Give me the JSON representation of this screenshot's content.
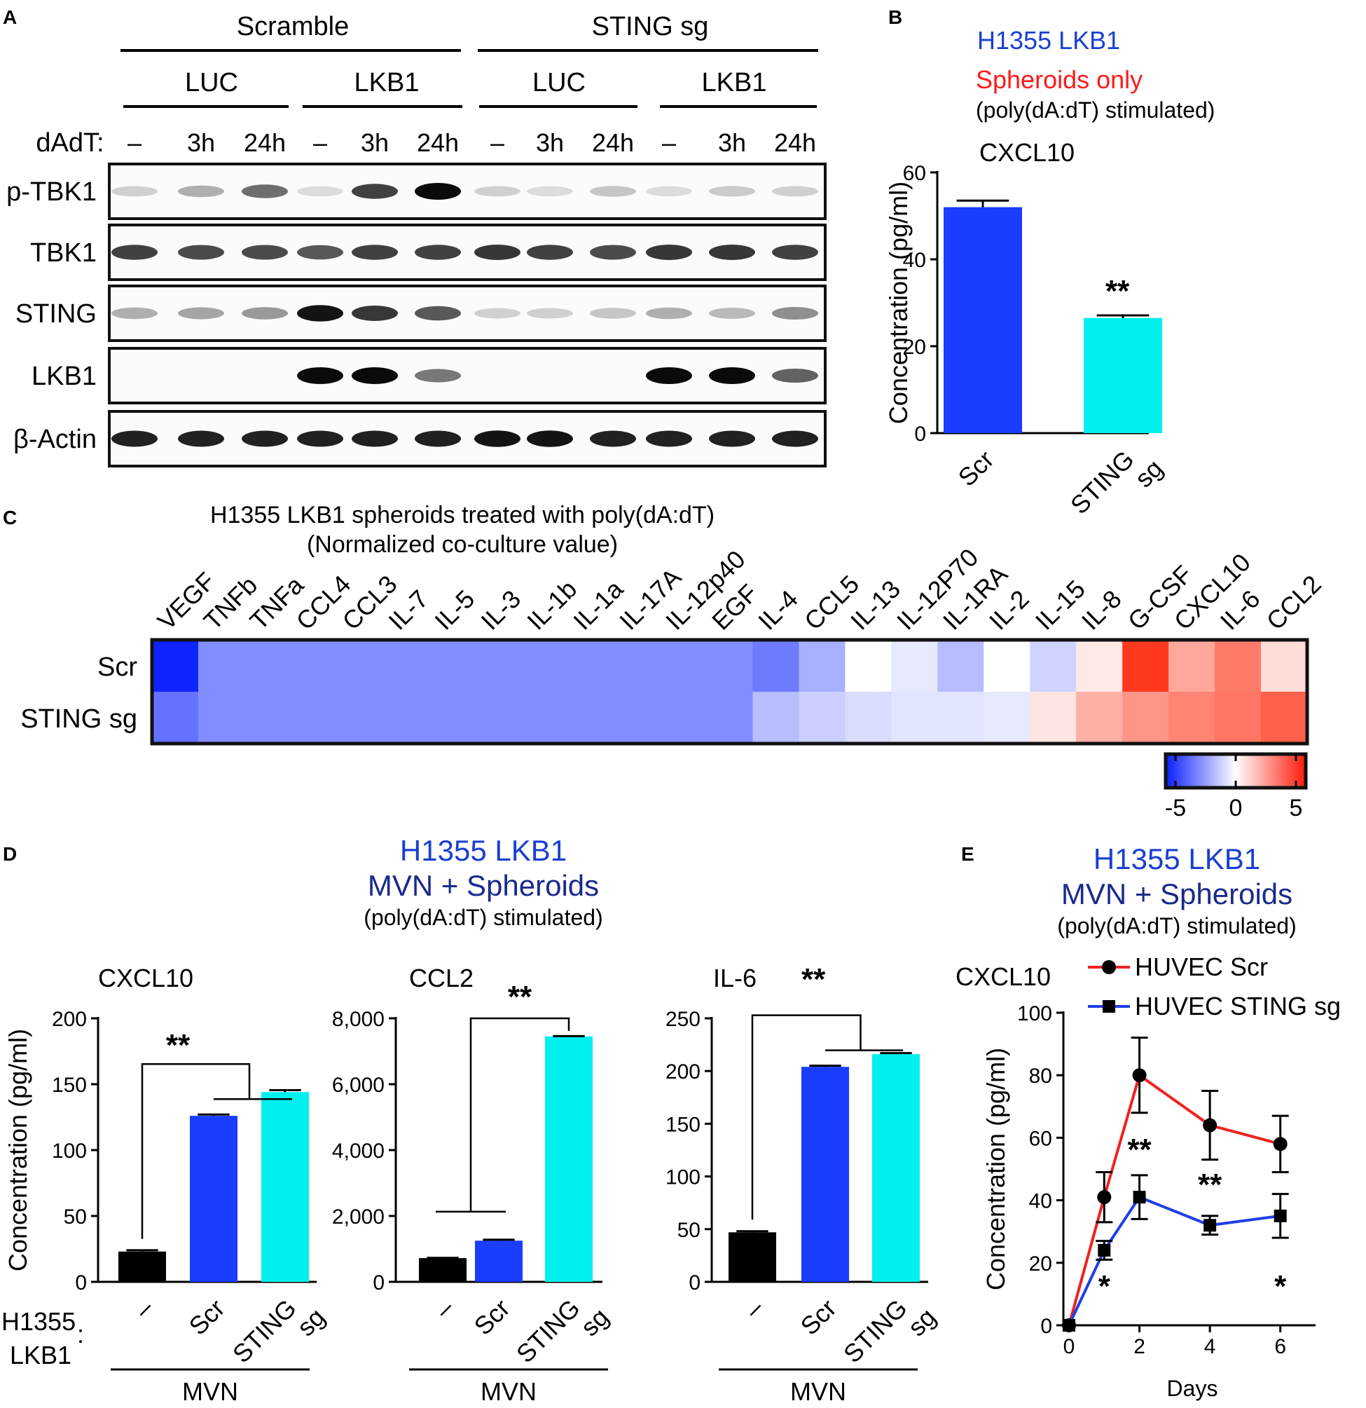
{
  "panel_letters": [
    "A",
    "B",
    "C",
    "D",
    "E"
  ],
  "panel_a": {
    "groups": [
      "Scramble",
      "STING sg"
    ],
    "subgroups": [
      "LUC",
      "LKB1",
      "LUC",
      "LKB1"
    ],
    "time_label": "dAdT:",
    "times": [
      "–",
      "3h",
      "24h",
      "–",
      "3h",
      "24h",
      "–",
      "3h",
      "24h",
      "–",
      "3h",
      "24h"
    ],
    "blot_labels": [
      "p-TBK1",
      "TBK1",
      "STING",
      "LKB1",
      "β-Actin"
    ],
    "band_intensity": {
      "p-TBK1": [
        0.1,
        0.25,
        0.55,
        0.05,
        0.75,
        1.0,
        0.1,
        0.05,
        0.15,
        0.05,
        0.12,
        0.1
      ],
      "TBK1": [
        0.75,
        0.7,
        0.7,
        0.65,
        0.75,
        0.75,
        0.8,
        0.75,
        0.7,
        0.8,
        0.8,
        0.75
      ],
      "STING": [
        0.25,
        0.3,
        0.35,
        0.95,
        0.8,
        0.65,
        0.1,
        0.1,
        0.15,
        0.25,
        0.2,
        0.4
      ],
      "LKB1": [
        0.0,
        0.0,
        0.0,
        1.0,
        1.0,
        0.5,
        0.0,
        0.0,
        0.0,
        1.0,
        1.0,
        0.6
      ],
      "β-Actin": [
        0.9,
        0.9,
        0.9,
        0.9,
        0.9,
        0.9,
        0.95,
        0.95,
        0.9,
        0.9,
        0.9,
        0.9
      ]
    }
  },
  "panel_b": {
    "line1": "H1355 LKB1",
    "line2": "Spheroids only",
    "line3": "(poly(dA:dT) stimulated)",
    "colors": {
      "line1": "#1a3fd1",
      "line2": "#ff1a1a"
    }
  },
  "panel_c": {
    "title1": "H1355 LKB1 spheroids treated with poly(dA:dT)",
    "title2": "(Normalized co-culture value)",
    "columns": [
      "VEGF",
      "TNFb",
      "TNFa",
      "CCL4",
      "CCL3",
      "IL-7",
      "IL-5",
      "IL-3",
      "IL-1b",
      "IL-1a",
      "IL-17A",
      "IL-12p40",
      "EGF",
      "IL-4",
      "CCL5",
      "IL-13",
      "IL-12P70",
      "IL-1RA",
      "IL-2",
      "IL-15",
      "IL-8",
      "G-CSF",
      "CXCL10",
      "IL-6",
      "CCL2"
    ],
    "rows": [
      "Scr",
      "STING sg"
    ],
    "colorbar_ticks": [
      "-5",
      "0",
      "5"
    ]
  },
  "panel_d": {
    "title1": "H1355 LKB1",
    "title2": "MVN + Spheroids",
    "title3": "(poly(dA:dT) stimulated)",
    "row_label1": "H1355",
    "row_label2": "LKB1",
    "colon": ":",
    "group_label": "MVN",
    "bar_colors": [
      "#000000",
      "#1a3dff",
      "#00f0f0"
    ]
  },
  "panel_e": {
    "title1": "H1355 LKB1",
    "title2": "MVN + Spheroids",
    "title3": "(poly(dA:dT) stimulated)"
  },
  "chart_data": [
    {
      "panel": "B",
      "type": "bar",
      "title": "CXCL10",
      "ylabel": "Concentration (pg/ml)",
      "categories": [
        "Scr",
        "STING sg"
      ],
      "values": [
        52,
        26.5
      ],
      "errors": [
        1.5,
        0.6
      ],
      "ylim": [
        0,
        60
      ],
      "yticks": [
        "0",
        "20",
        "40",
        "60"
      ],
      "significance": "**"
    },
    {
      "panel": "C",
      "type": "heatmap",
      "rows": [
        "Scr",
        "STING sg"
      ],
      "columns": [
        "VEGF",
        "TNFb",
        "TNFa",
        "CCL4",
        "CCL3",
        "IL-7",
        "IL-5",
        "IL-3",
        "IL-1b",
        "IL-1a",
        "IL-17A",
        "IL-12p40",
        "EGF",
        "IL-4",
        "CCL5",
        "IL-13",
        "IL-12P70",
        "IL-1RA",
        "IL-2",
        "IL-15",
        "IL-8",
        "G-CSF",
        "CXCL10",
        "IL-6",
        "CCL2"
      ],
      "values": [
        [
          -5,
          -2.6,
          -2.6,
          -2.6,
          -2.6,
          -2.6,
          -2.6,
          -2.6,
          -2.6,
          -2.6,
          -2.6,
          -2.6,
          -2.6,
          -3,
          -1.8,
          0,
          -0.5,
          -1.5,
          0,
          -1,
          0.5,
          4.5,
          2,
          3,
          0.8
        ],
        [
          -3.2,
          -2.6,
          -2.6,
          -2.6,
          -2.6,
          -2.6,
          -2.6,
          -2.6,
          -2.6,
          -2.6,
          -2.6,
          -2.6,
          -2.6,
          -1.5,
          -1.1,
          -0.8,
          -0.6,
          -0.6,
          -0.5,
          0.6,
          1.8,
          2.4,
          2.8,
          3.1,
          3.6
        ]
      ],
      "range": [
        -5,
        5
      ]
    },
    {
      "panel": "D1",
      "type": "bar",
      "title": "CXCL10",
      "ylabel": "Concentration (pg/ml)",
      "categories": [
        "–",
        "Scr",
        "STING sg"
      ],
      "values": [
        23,
        126,
        144
      ],
      "errors": [
        1,
        1,
        1.5
      ],
      "ylim": [
        0,
        200
      ],
      "yticks": [
        "0",
        "50",
        "100",
        "150",
        "200"
      ],
      "significance": "**"
    },
    {
      "panel": "D2",
      "type": "bar",
      "title": "CCL2",
      "categories": [
        "–",
        "Scr",
        "STING sg"
      ],
      "values": [
        720,
        1250,
        7450
      ],
      "errors": [
        10,
        30,
        10
      ],
      "ylim": [
        0,
        8000
      ],
      "yticks": [
        "0",
        "2,000",
        "4,000",
        "6,000",
        "8,000"
      ],
      "significance": "**"
    },
    {
      "panel": "D3",
      "type": "bar",
      "title": "IL-6",
      "categories": [
        "–",
        "Scr",
        "STING sg"
      ],
      "values": [
        47,
        204,
        216
      ],
      "errors": [
        1,
        1,
        1
      ],
      "ylim": [
        0,
        250
      ],
      "yticks": [
        "0",
        "50",
        "100",
        "150",
        "200",
        "250"
      ],
      "significance": "**"
    },
    {
      "panel": "E",
      "type": "line",
      "title": "CXCL10",
      "xlabel": "Days",
      "ylabel": "Concentration (pg/ml)",
      "x": [
        0,
        1,
        2,
        4,
        6
      ],
      "xticks": [
        "0",
        "2",
        "4",
        "6"
      ],
      "ylim": [
        0,
        100
      ],
      "yticks": [
        "0",
        "20",
        "40",
        "60",
        "80",
        "100"
      ],
      "series": [
        {
          "name": "HUVEC Scr",
          "color": "#ee2222",
          "marker": "circle",
          "values": [
            0,
            41,
            80,
            64,
            58
          ],
          "errors": [
            0,
            8,
            12,
            11,
            9
          ]
        },
        {
          "name": "HUVEC STING sg",
          "color": "#1f3fe6",
          "marker": "square",
          "values": [
            0,
            24,
            41,
            32,
            35
          ],
          "errors": [
            0,
            3,
            7,
            3,
            7
          ]
        }
      ],
      "annotations": [
        {
          "x": 1,
          "text": "*"
        },
        {
          "x": 2,
          "text": "**"
        },
        {
          "x": 4,
          "text": "**"
        },
        {
          "x": 6,
          "text": "*"
        }
      ]
    }
  ]
}
